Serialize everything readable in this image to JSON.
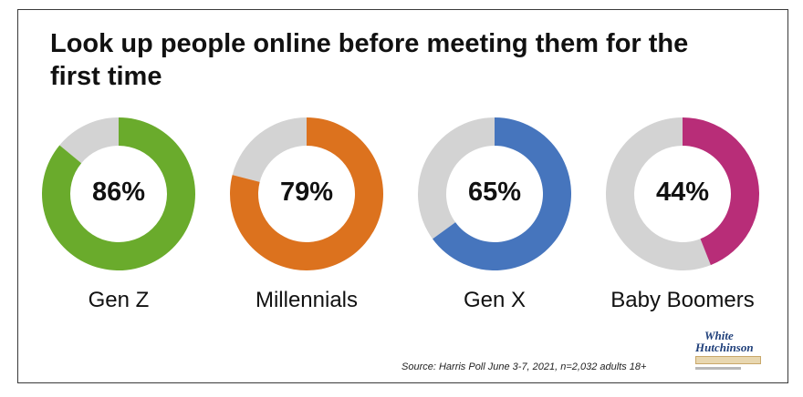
{
  "title": "Look up people online before meeting them for the first time",
  "source": "Source: Harris Poll June 3-7, 2021, n=2,032 adults 18+",
  "logo": {
    "line1": "White",
    "line2": "Hutchinson"
  },
  "colors": {
    "remainder": "#d3d3d3"
  },
  "chart_data": {
    "type": "pie",
    "variant": "donut",
    "title": "Look up people online before meeting them for the first time",
    "categories": [
      "Gen Z",
      "Millennials",
      "Gen X",
      "Baby Boomers"
    ],
    "values": [
      86,
      79,
      65,
      44
    ],
    "labels": [
      "86%",
      "79%",
      "65%",
      "44%"
    ],
    "colors": [
      "#6aab2c",
      "#dc721e",
      "#4675bd",
      "#b82d78"
    ]
  }
}
